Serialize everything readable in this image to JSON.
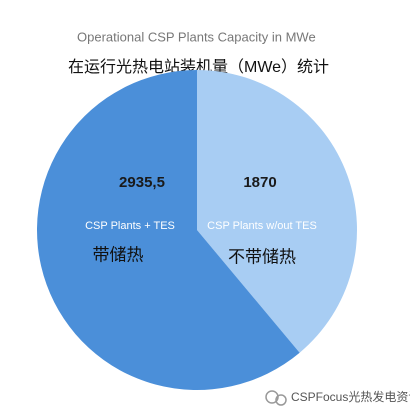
{
  "chart_data": {
    "type": "pie",
    "title": "Operational CSP Plants Capacity in MWe",
    "subtitle": "在运行光热电站装机量（MWe）统计",
    "categories": [
      "CSP Plants w/out TES",
      "CSP Plants + TES"
    ],
    "values": [
      1870,
      2935.5
    ],
    "value_labels": [
      "1870",
      "2935,5"
    ],
    "colors": [
      "#a8cdf3",
      "#4b8fd9"
    ],
    "annotations": [
      "不带储热",
      "带储热"
    ]
  },
  "watermark": "CSPFocus光热发电资讯"
}
